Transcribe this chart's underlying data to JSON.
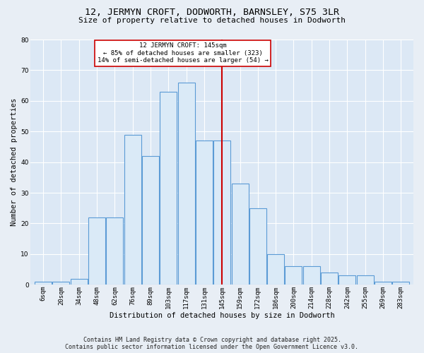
{
  "title": "12, JERMYN CROFT, DODWORTH, BARNSLEY, S75 3LR",
  "subtitle": "Size of property relative to detached houses in Dodworth",
  "xlabel": "Distribution of detached houses by size in Dodworth",
  "ylabel": "Number of detached properties",
  "categories": [
    "6sqm",
    "20sqm",
    "34sqm",
    "48sqm",
    "62sqm",
    "76sqm",
    "89sqm",
    "103sqm",
    "117sqm",
    "131sqm",
    "145sqm",
    "159sqm",
    "172sqm",
    "186sqm",
    "200sqm",
    "214sqm",
    "228sqm",
    "242sqm",
    "255sqm",
    "269sqm",
    "283sqm"
  ],
  "values": [
    1,
    1,
    2,
    22,
    22,
    49,
    42,
    63,
    66,
    47,
    47,
    33,
    25,
    10,
    6,
    6,
    4,
    3,
    3,
    1,
    1
  ],
  "bar_color_fill": "#daeaf7",
  "bar_color_edge": "#5b9bd5",
  "marker_idx": 10,
  "marker_label_line1": "12 JERMYN CROFT: 145sqm",
  "marker_label_line2": "← 85% of detached houses are smaller (323)",
  "marker_label_line3": "14% of semi-detached houses are larger (54) →",
  "marker_line_color": "#cc0000",
  "ylim": [
    0,
    80
  ],
  "yticks": [
    0,
    10,
    20,
    30,
    40,
    50,
    60,
    70,
    80
  ],
  "plot_bg_color": "#dce8f5",
  "fig_bg_color": "#e8eef5",
  "footer": "Contains HM Land Registry data © Crown copyright and database right 2025.\nContains public sector information licensed under the Open Government Licence v3.0.",
  "title_fontsize": 9.5,
  "subtitle_fontsize": 8,
  "axis_label_fontsize": 7.5,
  "tick_fontsize": 6.5,
  "footer_fontsize": 6,
  "annot_fontsize": 6.5
}
